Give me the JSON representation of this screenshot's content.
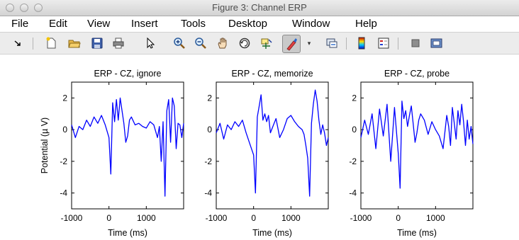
{
  "window": {
    "title": "Figure 3: Channel ERP"
  },
  "menubar": {
    "items": [
      "File",
      "Edit",
      "View",
      "Insert",
      "Tools",
      "Desktop",
      "Window",
      "Help"
    ]
  },
  "toolbar": {
    "icons": [
      "dock-arrow-icon",
      "new-figure-icon",
      "open-file-icon",
      "save-icon",
      "print-icon",
      "edit-plot-pointer-icon",
      "zoom-in-icon",
      "zoom-out-icon",
      "pan-hand-icon",
      "rotate-3d-icon",
      "data-cursor-icon",
      "brush-icon",
      "brush-dropdown-icon",
      "link-plot-icon",
      "colorbar-icon",
      "legend-icon",
      "hide-plot-tools-icon",
      "show-plot-tools-icon"
    ]
  },
  "shared": {
    "xlabel": "Time (ms)",
    "ylabel": "Potential (µ V)",
    "xticks": [
      "-1000",
      "0",
      "1000"
    ],
    "yticks": [
      "2",
      "0",
      "-2",
      "-4"
    ],
    "line_color": "#0000ff"
  },
  "chart_data": [
    {
      "type": "line",
      "title": "ERP - CZ, ignore",
      "xlabel": "Time (ms)",
      "ylabel": "Potential (µ V)",
      "xlim": [
        -1000,
        2000
      ],
      "ylim": [
        -5,
        3
      ],
      "x": [
        -1000,
        -900,
        -800,
        -700,
        -600,
        -500,
        -400,
        -300,
        -200,
        -100,
        0,
        50,
        100,
        150,
        200,
        250,
        300,
        350,
        400,
        450,
        500,
        550,
        600,
        700,
        800,
        900,
        1000,
        1100,
        1200,
        1300,
        1350,
        1400,
        1450,
        1500,
        1550,
        1600,
        1650,
        1700,
        1750,
        1800,
        1850,
        1900,
        1950,
        2000
      ],
      "y": [
        0.3,
        -0.5,
        0.2,
        0.0,
        0.6,
        0.2,
        0.8,
        0.4,
        0.9,
        0.3,
        -0.5,
        -2.8,
        1.7,
        0.5,
        1.9,
        0.6,
        2.0,
        1.2,
        0.4,
        -0.8,
        -0.4,
        0.6,
        0.8,
        0.3,
        0.4,
        0.2,
        0.1,
        0.5,
        0.3,
        -0.5,
        0.2,
        -2.0,
        0.5,
        -4.2,
        1.2,
        1.9,
        -0.8,
        2.0,
        1.5,
        -1.2,
        0.4,
        0.3,
        -0.5,
        0.4
      ]
    },
    {
      "type": "line",
      "title": "ERP - CZ, memorize",
      "xlabel": "Time (ms)",
      "ylabel": "",
      "xlim": [
        -1000,
        2000
      ],
      "ylim": [
        -5,
        3
      ],
      "x": [
        -1000,
        -900,
        -800,
        -700,
        -600,
        -500,
        -400,
        -300,
        -200,
        -100,
        0,
        50,
        100,
        150,
        200,
        250,
        300,
        350,
        400,
        450,
        500,
        550,
        600,
        700,
        800,
        900,
        1000,
        1100,
        1200,
        1300,
        1350,
        1400,
        1450,
        1500,
        1550,
        1600,
        1650,
        1700,
        1750,
        1800,
        1850,
        1900,
        1950,
        2000
      ],
      "y": [
        -0.2,
        0.4,
        -0.6,
        0.3,
        0.0,
        0.5,
        0.2,
        0.6,
        -0.2,
        -0.9,
        -1.6,
        -4.0,
        0.8,
        1.5,
        2.2,
        0.6,
        1.0,
        0.5,
        0.9,
        -0.2,
        0.1,
        0.4,
        0.7,
        -0.5,
        0.0,
        0.7,
        0.9,
        0.5,
        0.2,
        0.0,
        -0.3,
        -1.0,
        -1.8,
        -4.2,
        0.4,
        1.6,
        2.5,
        1.8,
        0.6,
        -0.3,
        0.3,
        -0.2,
        -1.0,
        -0.5
      ]
    },
    {
      "type": "line",
      "title": "ERP - CZ, probe",
      "xlabel": "Time (ms)",
      "ylabel": "",
      "xlim": [
        -1000,
        2000
      ],
      "ylim": [
        -5,
        3
      ],
      "x": [
        -1000,
        -900,
        -800,
        -700,
        -600,
        -500,
        -400,
        -300,
        -200,
        -100,
        0,
        50,
        100,
        150,
        200,
        250,
        300,
        350,
        400,
        450,
        500,
        550,
        600,
        700,
        800,
        900,
        1000,
        1100,
        1200,
        1300,
        1350,
        1400,
        1450,
        1500,
        1550,
        1600,
        1650,
        1700,
        1750,
        1800,
        1850,
        1900,
        1950,
        2000
      ],
      "y": [
        -0.5,
        0.6,
        -0.3,
        1.0,
        -1.2,
        1.3,
        -0.4,
        1.6,
        -2.0,
        1.4,
        -1.5,
        -3.7,
        1.8,
        0.7,
        1.2,
        0.2,
        0.9,
        1.5,
        0.4,
        -0.8,
        -0.2,
        0.6,
        1.0,
        0.6,
        -0.3,
        0.5,
        0.0,
        -0.4,
        -1.2,
        0.9,
        0.2,
        -1.0,
        1.4,
        0.4,
        -0.6,
        1.2,
        0.3,
        1.6,
        0.5,
        -1.0,
        0.6,
        -0.6,
        0.2,
        -0.9
      ]
    }
  ]
}
